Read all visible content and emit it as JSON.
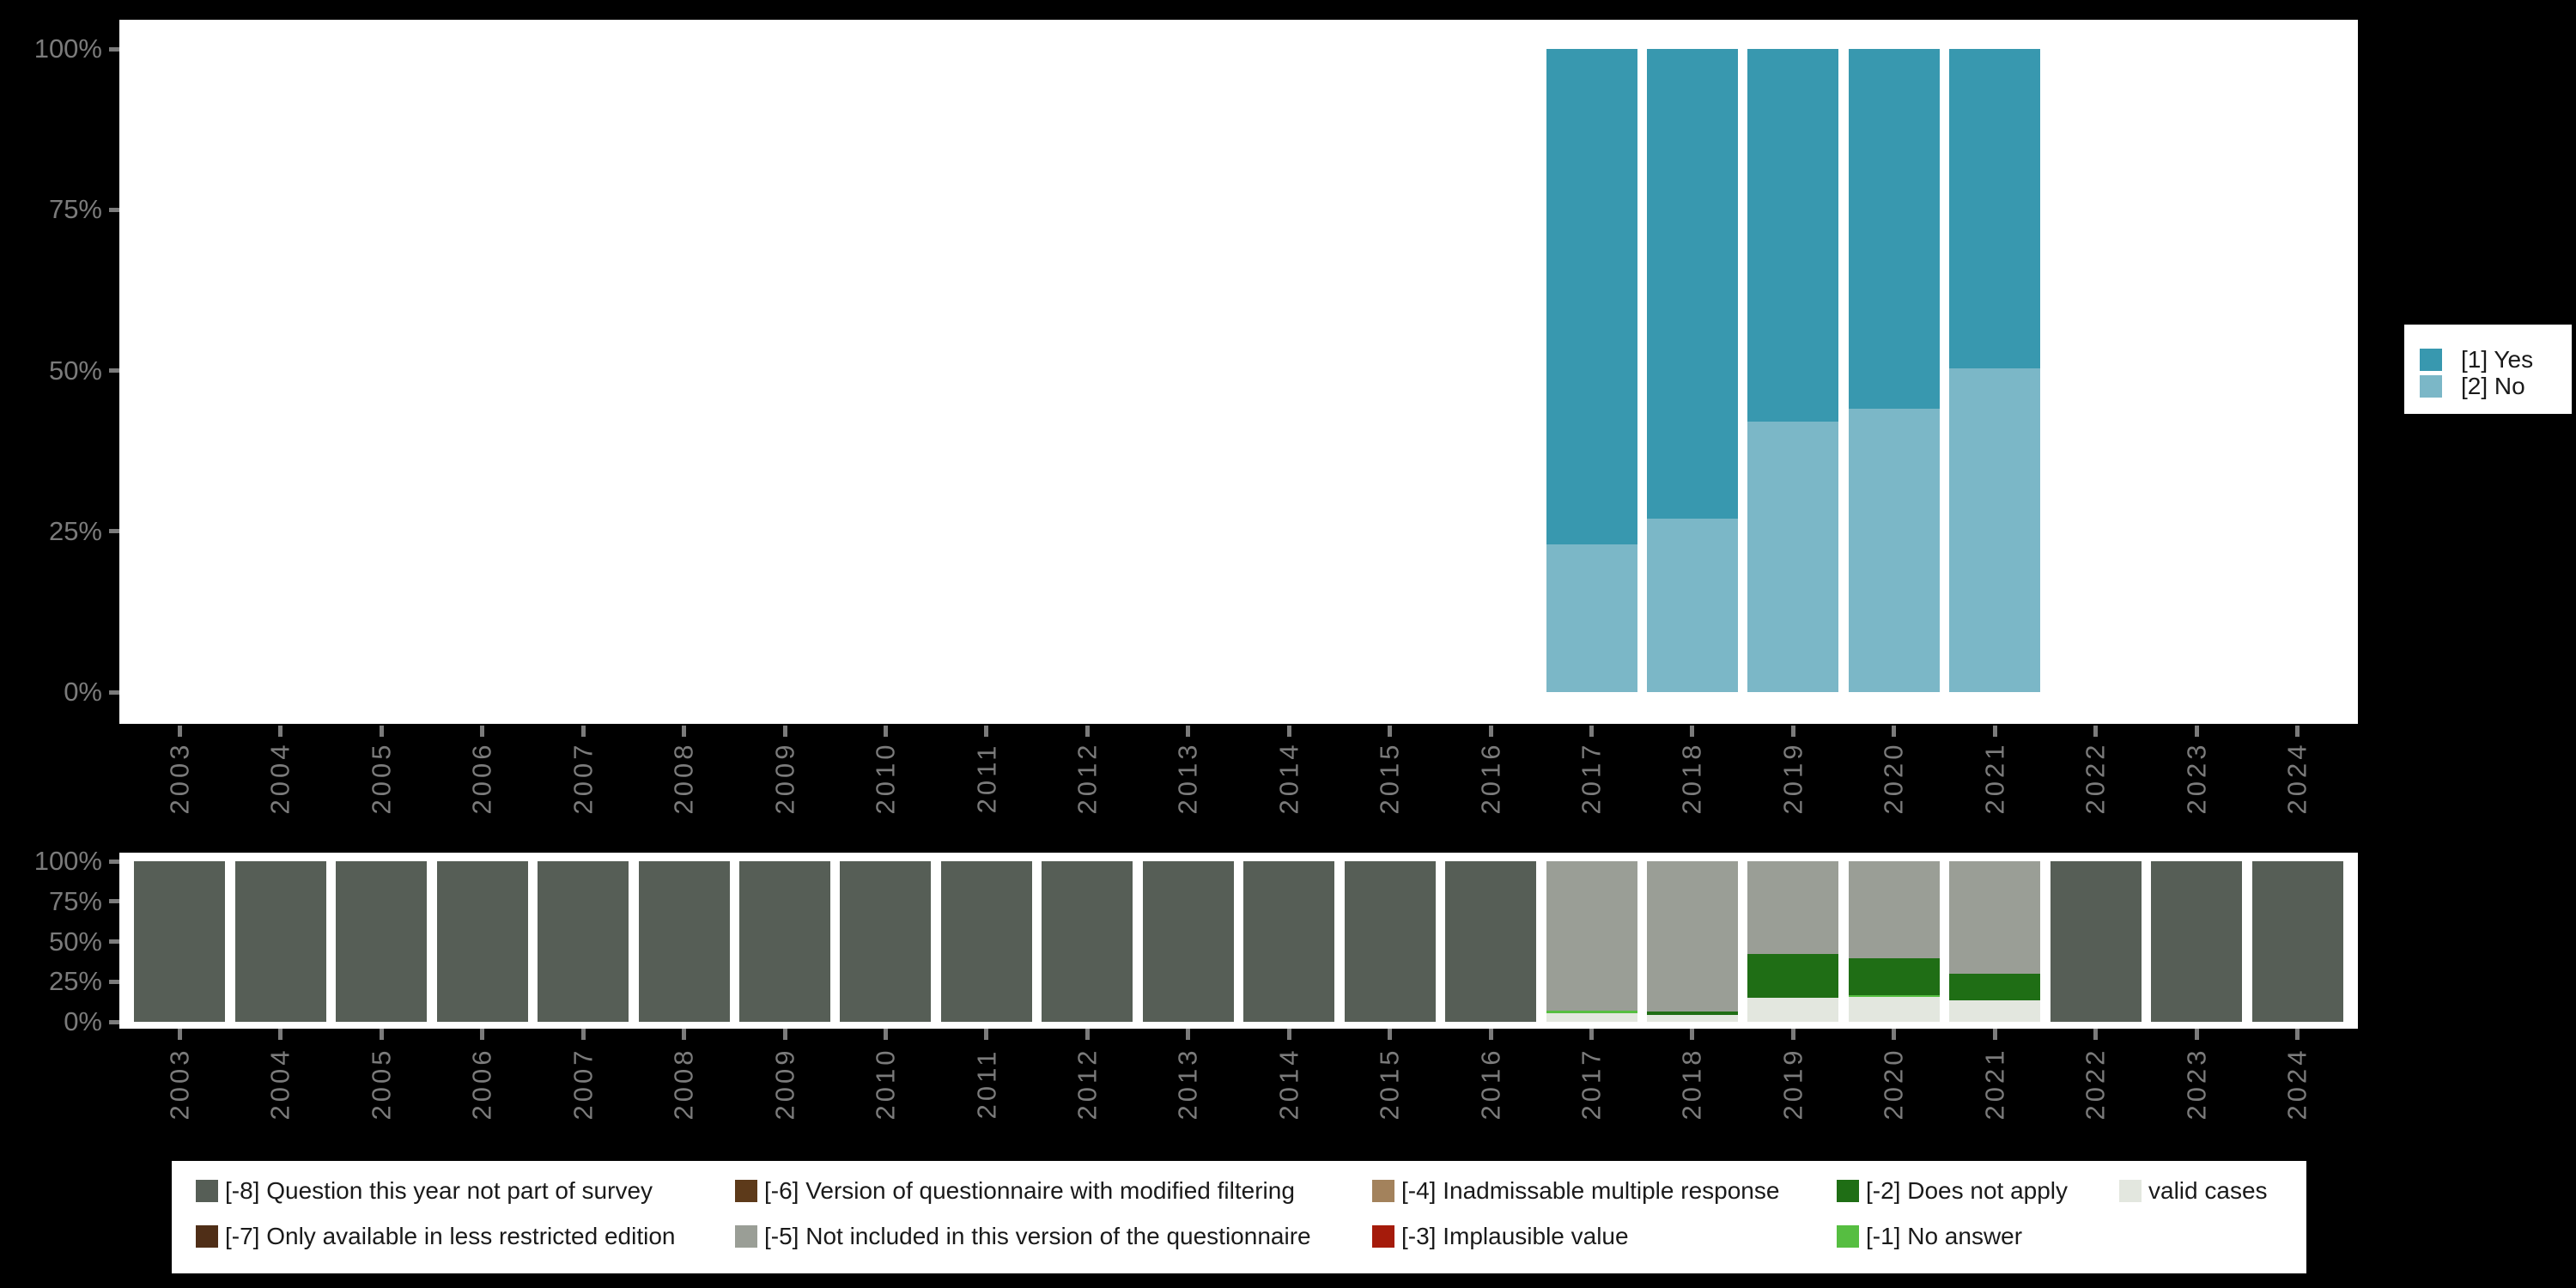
{
  "colors": {
    "background": "#000000",
    "panel": "#ffffff",
    "axis_text": "#7b7b7b",
    "legend_text": "#1a1a1a",
    "yes": "#3898af",
    "no": "#7bb7c7",
    "not_part_of_survey": "#565e56",
    "not_included_version": "#9a9e96",
    "does_not_apply": "#1f6e15",
    "no_answer": "#56be41",
    "valid_cases": "#e3e7df",
    "less_restricted_edition": "#4f2e17",
    "modified_filtering": "#5d3a1a",
    "inadmissable_multiple": "#a3825c",
    "implausible_value": "#a51b0b"
  },
  "top_legend": {
    "items": [
      {
        "label": "[1] Yes",
        "color_key": "yes"
      },
      {
        "label": "[2] No",
        "color_key": "no"
      }
    ]
  },
  "bottom_legend": {
    "columns": [
      {
        "row1": {
          "label": "[-8] Question this year not part of survey",
          "color_key": "not_part_of_survey"
        },
        "row2": {
          "label": "[-7] Only available in less restricted edition",
          "color_key": "less_restricted_edition"
        }
      },
      {
        "row1": {
          "label": "[-6] Version of questionnaire with modified filtering",
          "color_key": "modified_filtering"
        },
        "row2": {
          "label": "[-5] Not included in this version of the questionnaire",
          "color_key": "not_included_version"
        }
      },
      {
        "row1": {
          "label": "[-4] Inadmissable multiple response",
          "color_key": "inadmissable_multiple"
        },
        "row2": {
          "label": "[-3] Implausible value",
          "color_key": "implausible_value"
        }
      },
      {
        "row1": {
          "label": "[-2] Does not apply",
          "color_key": "does_not_apply"
        },
        "row2": {
          "label": "[-1] No answer",
          "color_key": "no_answer"
        }
      },
      {
        "row1": {
          "label": "valid cases",
          "color_key": "valid_cases"
        },
        "row2": null
      }
    ]
  },
  "chart_data": [
    {
      "type": "bar",
      "name": "yes-no-distribution",
      "stacked": true,
      "categories": [
        "2003",
        "2004",
        "2005",
        "2006",
        "2007",
        "2008",
        "2009",
        "2010",
        "2011",
        "2012",
        "2013",
        "2014",
        "2015",
        "2016",
        "2017",
        "2018",
        "2019",
        "2020",
        "2021",
        "2022",
        "2023",
        "2024"
      ],
      "y_ticks": [
        "0%",
        "25%",
        "50%",
        "75%",
        "100%"
      ],
      "ylim": [
        0,
        100
      ],
      "grid": false,
      "legend_position": "right",
      "series": [
        {
          "name": "[1] Yes",
          "color_key": "yes",
          "values": [
            null,
            null,
            null,
            null,
            null,
            null,
            null,
            null,
            null,
            null,
            null,
            null,
            null,
            null,
            77,
            73,
            58,
            56,
            49.6,
            null,
            null,
            null
          ]
        },
        {
          "name": "[2] No",
          "color_key": "no",
          "values": [
            null,
            null,
            null,
            null,
            null,
            null,
            null,
            null,
            null,
            null,
            null,
            null,
            null,
            null,
            23,
            27,
            42,
            44,
            50.4,
            null,
            null,
            null
          ]
        }
      ]
    },
    {
      "type": "bar",
      "name": "missing-values-distribution",
      "stacked": true,
      "categories": [
        "2003",
        "2004",
        "2005",
        "2006",
        "2007",
        "2008",
        "2009",
        "2010",
        "2011",
        "2012",
        "2013",
        "2014",
        "2015",
        "2016",
        "2017",
        "2018",
        "2019",
        "2020",
        "2021",
        "2022",
        "2023",
        "2024"
      ],
      "y_ticks": [
        "0%",
        "25%",
        "50%",
        "75%",
        "100%"
      ],
      "ylim": [
        0,
        100
      ],
      "grid": false,
      "legend_position": "bottom",
      "series": [
        {
          "name": "[-8] Question this year not part of survey",
          "color_key": "not_part_of_survey",
          "values": [
            100,
            100,
            100,
            100,
            100,
            100,
            100,
            100,
            100,
            100,
            100,
            100,
            100,
            100,
            null,
            null,
            null,
            null,
            null,
            100,
            100,
            100
          ]
        },
        {
          "name": "[-5] Not included in this version of the questionnaire",
          "color_key": "not_included_version",
          "values": [
            null,
            null,
            null,
            null,
            null,
            null,
            null,
            null,
            null,
            null,
            null,
            null,
            null,
            null,
            93,
            93.5,
            58,
            60.5,
            70,
            null,
            null,
            null
          ]
        },
        {
          "name": "[-2] Does not apply",
          "color_key": "does_not_apply",
          "values": [
            null,
            null,
            null,
            null,
            null,
            null,
            null,
            null,
            null,
            null,
            null,
            null,
            null,
            null,
            null,
            2,
            27,
            23,
            16.5,
            null,
            null,
            null
          ]
        },
        {
          "name": "[-1] No answer",
          "color_key": "no_answer",
          "values": [
            null,
            null,
            null,
            null,
            null,
            null,
            null,
            null,
            null,
            null,
            null,
            null,
            null,
            null,
            1.5,
            null,
            null,
            1,
            null,
            null,
            null,
            null
          ]
        },
        {
          "name": "valid cases",
          "color_key": "valid_cases",
          "values": [
            null,
            null,
            null,
            null,
            null,
            null,
            null,
            null,
            null,
            null,
            null,
            null,
            null,
            null,
            5.5,
            4.5,
            15,
            15.5,
            13.5,
            null,
            null,
            null
          ]
        }
      ]
    }
  ]
}
